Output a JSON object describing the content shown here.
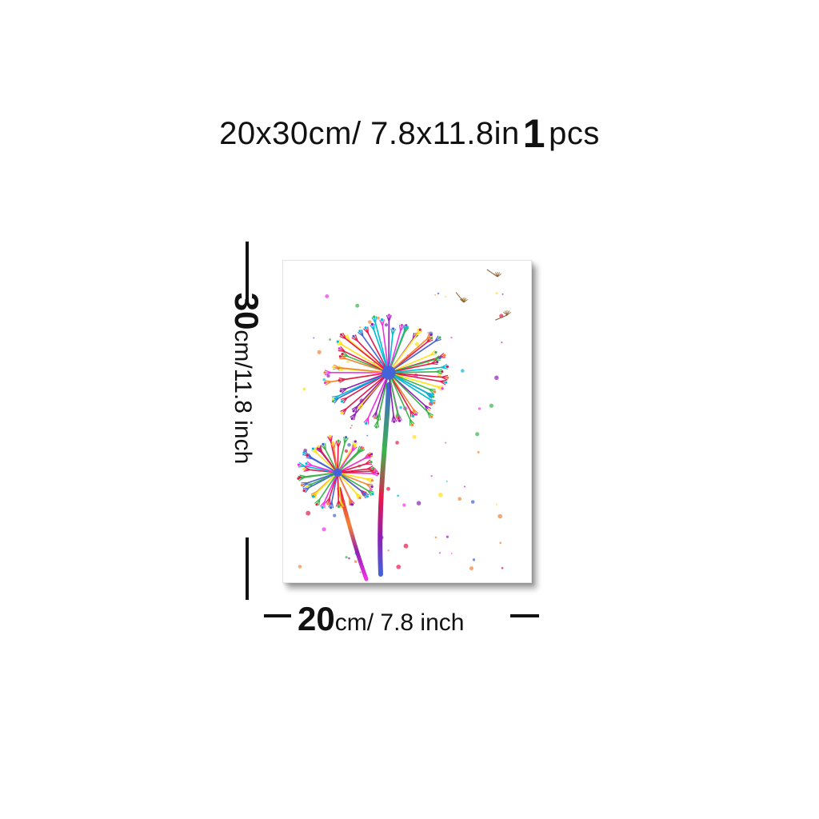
{
  "heading": {
    "size_text": "20x30cm/ 7.8x11.8in",
    "count_number": "1",
    "count_unit": "pcs"
  },
  "height_dimension": {
    "value": "30",
    "unit_text": "cm/11.8 inch"
  },
  "width_dimension": {
    "value": "20",
    "unit_text": "cm/ 7.8 inch"
  },
  "artwork": {
    "subject": "watercolor-dandelions",
    "palette": [
      "#e6194b",
      "#f58231",
      "#ffe119",
      "#3cb44b",
      "#4363d8",
      "#911eb4",
      "#f032e6",
      "#00bcd4"
    ]
  }
}
